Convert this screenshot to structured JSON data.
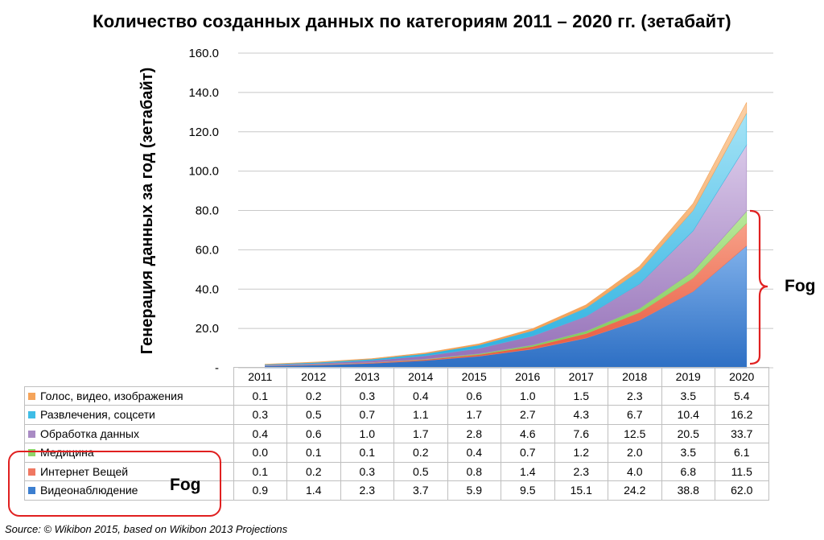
{
  "chart_data": {
    "type": "area",
    "stacked": true,
    "title": "Количество созданных данных по категориям 2011 – 2020 гг. (зетабайт)",
    "ylabel": "Генерация данных за год (зетабайт)",
    "xlabel": "",
    "ylim": [
      0,
      160
    ],
    "y_ticks": [
      "-",
      "20.0",
      "40.0",
      "60.0",
      "80.0",
      "100.0",
      "120.0",
      "140.0",
      "160.0"
    ],
    "grid": true,
    "legend": "table-below",
    "categories": [
      "2011",
      "2012",
      "2013",
      "2014",
      "2015",
      "2016",
      "2017",
      "2018",
      "2019",
      "2020"
    ],
    "series": [
      {
        "name": "Голос, видео, изображения",
        "color": "#f5a45a",
        "values": [
          "0.1",
          "0.2",
          "0.3",
          "0.4",
          "0.6",
          "1.0",
          "1.5",
          "2.3",
          "3.5",
          "5.4"
        ]
      },
      {
        "name": "Развлечения, соцсети",
        "color": "#3fbde6",
        "values": [
          "0.3",
          "0.5",
          "0.7",
          "1.1",
          "1.7",
          "2.7",
          "4.3",
          "6.7",
          "10.4",
          "16.2"
        ]
      },
      {
        "name": "Обработка данных",
        "color": "#a98bc4",
        "values": [
          "0.4",
          "0.6",
          "1.0",
          "1.7",
          "2.8",
          "4.6",
          "7.6",
          "12.5",
          "20.5",
          "33.7"
        ]
      },
      {
        "name": "Медицина",
        "color": "#8fd46a",
        "values": [
          "0.0",
          "0.1",
          "0.1",
          "0.2",
          "0.4",
          "0.7",
          "1.2",
          "2.0",
          "3.5",
          "6.1"
        ]
      },
      {
        "name": "Интернет Вещей",
        "color": "#f07862",
        "values": [
          "0.1",
          "0.2",
          "0.3",
          "0.5",
          "0.8",
          "1.4",
          "2.3",
          "4.0",
          "6.8",
          "11.5"
        ]
      },
      {
        "name": "Видеонаблюдение",
        "color": "#3c7fd0",
        "values": [
          "0.9",
          "1.4",
          "2.3",
          "3.7",
          "5.9",
          "9.5",
          "15.1",
          "24.2",
          "38.8",
          "62.0"
        ]
      }
    ]
  },
  "annotations": {
    "fog_bracket_label": "Fog",
    "fog_box_label": "Fog",
    "accent_color": "#e02020"
  },
  "source": "Source: © Wikibon 2015, based on Wikibon 2013 Projections"
}
